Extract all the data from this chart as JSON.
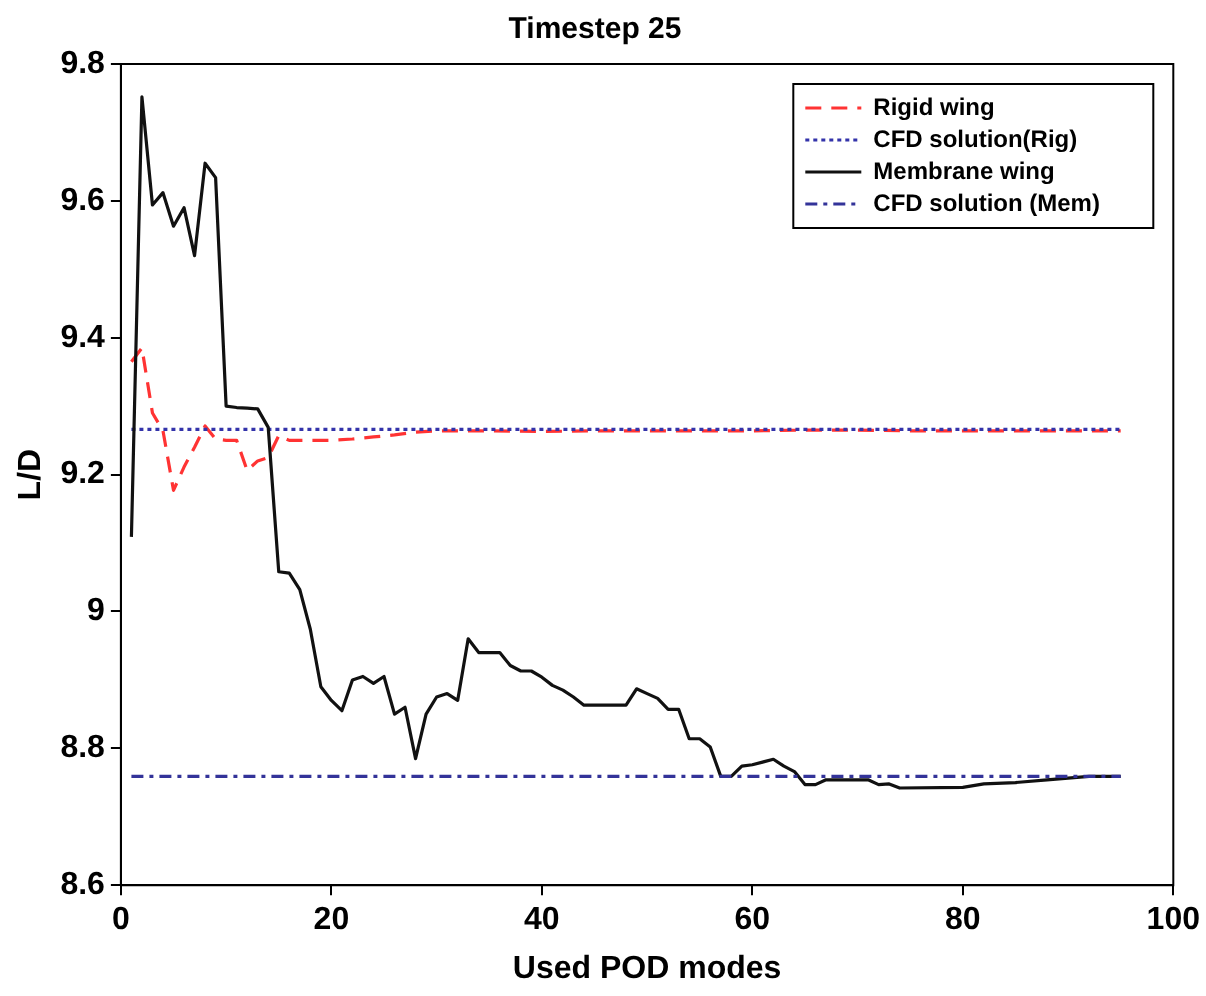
{
  "chart_data": {
    "type": "line",
    "title": "Timestep 25",
    "xlabel": "Used POD modes",
    "ylabel": "L/D",
    "xlim": [
      0,
      100
    ],
    "xticks": [
      0,
      20,
      40,
      60,
      80,
      100
    ],
    "ylim": [
      8.6,
      9.8
    ],
    "yticks": [
      8.6,
      8.8,
      9,
      9.2,
      9.4,
      9.6,
      9.8
    ],
    "grid": false,
    "legend": "top right",
    "marker": "none",
    "series": [
      {
        "name": "Rigid wing",
        "color": "#ff3333",
        "line_style": "dashed",
        "x": [
          1,
          2,
          3,
          4,
          5,
          6,
          7,
          8,
          9,
          10,
          11,
          12,
          13,
          14,
          15,
          16,
          18,
          20,
          22,
          24,
          26,
          28,
          30,
          35,
          40,
          45,
          50,
          55,
          60,
          65,
          70,
          75,
          80,
          85,
          90,
          95
        ],
        "values": [
          9.365,
          9.385,
          9.29,
          9.264,
          9.177,
          9.211,
          9.24,
          9.271,
          9.252,
          9.25,
          9.25,
          9.206,
          9.22,
          9.225,
          9.257,
          9.25,
          9.25,
          9.25,
          9.252,
          9.255,
          9.258,
          9.262,
          9.264,
          9.264,
          9.263,
          9.264,
          9.264,
          9.264,
          9.264,
          9.265,
          9.265,
          9.264,
          9.264,
          9.264,
          9.264,
          9.264
        ]
      },
      {
        "name": "CFD solution(Rig)",
        "color": "#3333aa",
        "line_style": "dotted",
        "x": [
          1,
          95
        ],
        "values": [
          9.266,
          9.266
        ]
      },
      {
        "name": "Membrane wing",
        "color": "#111111",
        "line_style": "solid",
        "x": [
          1,
          2,
          3,
          4,
          5,
          6,
          7,
          8,
          9,
          10,
          11,
          12,
          13,
          14,
          15,
          16,
          17,
          18,
          19,
          20,
          21,
          22,
          23,
          24,
          25,
          26,
          27,
          28,
          29,
          30,
          31,
          32,
          33,
          34,
          35,
          36,
          37,
          38,
          39,
          40,
          41,
          42,
          43,
          44,
          48,
          49,
          50,
          51,
          52,
          53,
          54,
          55,
          56,
          57,
          58,
          59,
          60,
          62,
          63,
          64,
          65,
          66,
          67,
          71,
          72,
          73,
          74,
          80,
          82,
          85,
          88,
          92,
          95
        ],
        "values": [
          9.109,
          9.752,
          9.594,
          9.612,
          9.563,
          9.59,
          9.52,
          9.655,
          9.634,
          9.3,
          9.298,
          9.297,
          9.296,
          9.269,
          9.058,
          9.056,
          9.032,
          8.974,
          8.89,
          8.87,
          8.855,
          8.9,
          8.905,
          8.895,
          8.905,
          8.85,
          8.86,
          8.785,
          8.85,
          8.875,
          8.88,
          8.87,
          8.96,
          8.94,
          8.94,
          8.94,
          8.921,
          8.913,
          8.913,
          8.904,
          8.892,
          8.885,
          8.875,
          8.863,
          8.863,
          8.887,
          8.88,
          8.873,
          8.857,
          8.857,
          8.814,
          8.814,
          8.802,
          8.759,
          8.759,
          8.774,
          8.776,
          8.784,
          8.774,
          8.766,
          8.747,
          8.747,
          8.754,
          8.754,
          8.747,
          8.748,
          8.742,
          8.743,
          8.748,
          8.75,
          8.754,
          8.759,
          8.759
        ]
      },
      {
        "name": "CFD solution (Mem)",
        "color": "#333399",
        "line_style": "dashdot",
        "x": [
          1,
          95
        ],
        "values": [
          8.759,
          8.759
        ]
      }
    ]
  }
}
